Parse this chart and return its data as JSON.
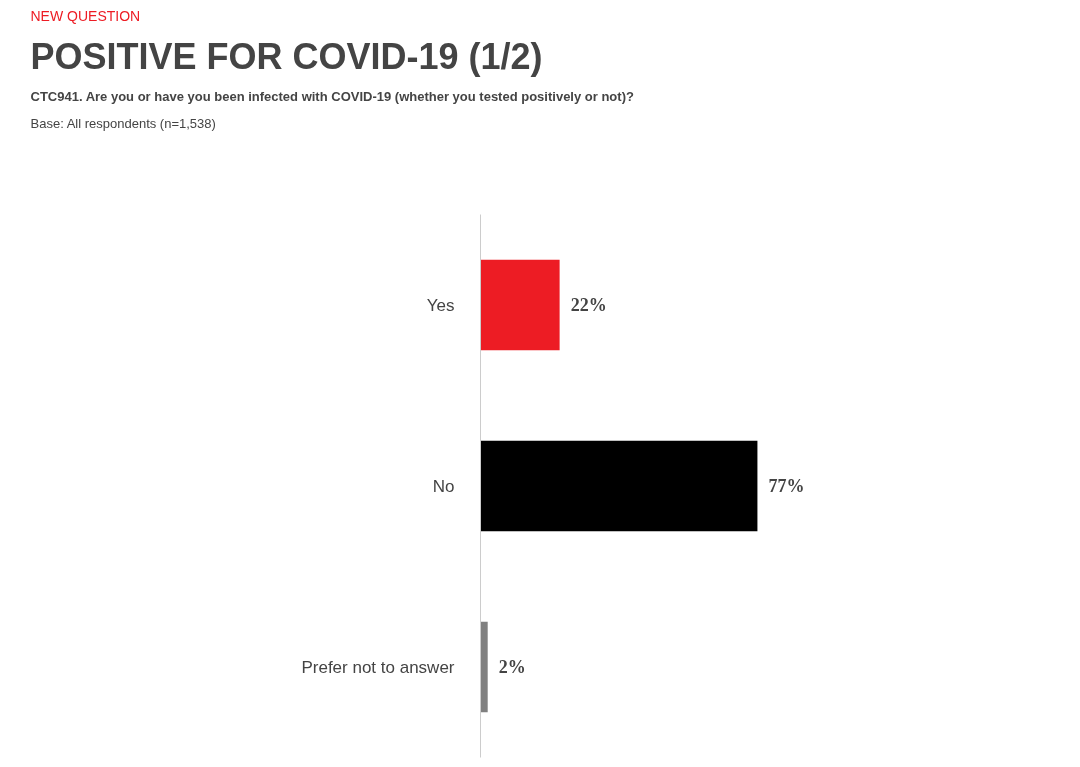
{
  "chart_data": {
    "type": "bar",
    "orientation": "horizontal",
    "title": "POSITIVE FOR COVID-19 (1/2)",
    "subtitle": "CTC941. Are you or have you been infected with COVID-19 (whether you tested positively or not)?",
    "annotations": [
      "NEW QUESTION",
      "Base: All respondents (n=1,538)"
    ],
    "categories": [
      "Yes",
      "No",
      "Prefer not to answer"
    ],
    "values": [
      22,
      77,
      2
    ],
    "colors": [
      "#ed1c24",
      "#000000",
      "#808080"
    ],
    "value_labels": [
      "22%",
      "77%",
      "2%"
    ]
  }
}
